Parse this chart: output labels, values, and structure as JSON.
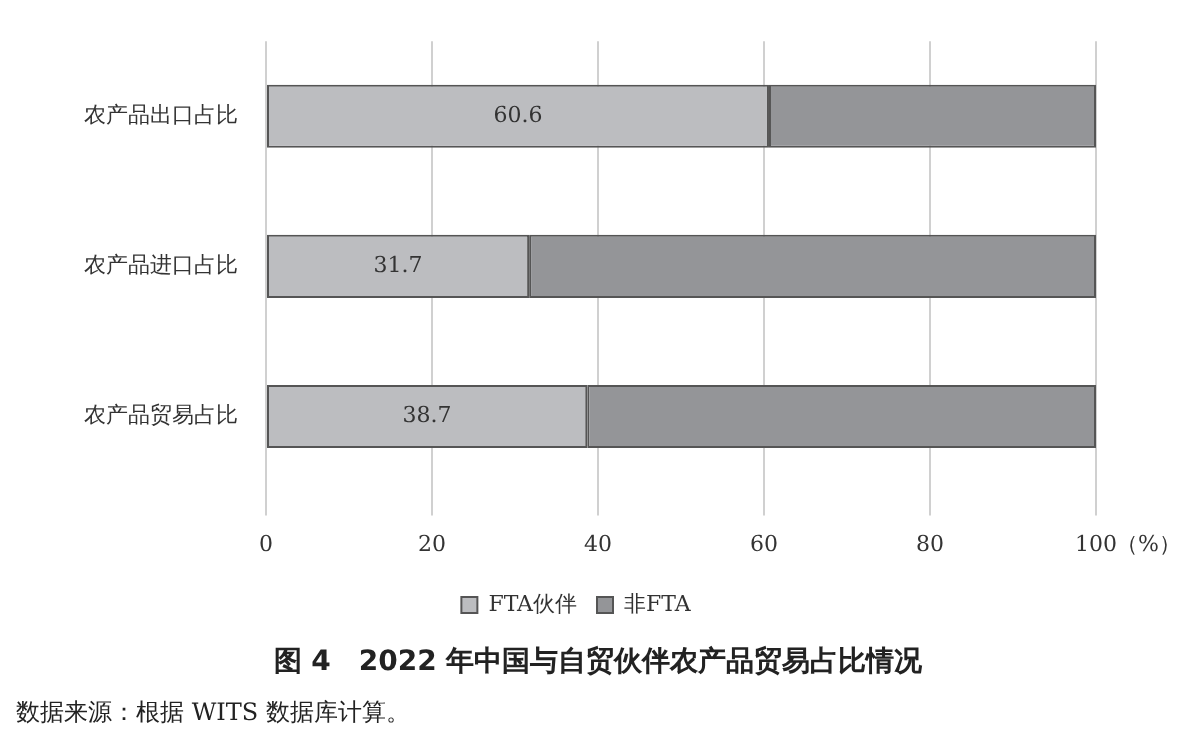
{
  "chart_data": {
    "type": "bar",
    "orientation": "horizontal",
    "stacked": true,
    "title": "图 4　2022 年中国与自贸伙伴农产品贸易占比情况",
    "xlabel": "（%）",
    "annotations": [
      "数据来源：根据 WITS 数据库计算。"
    ],
    "categories": [
      "农产品出口占比",
      "农产品进口占比",
      "农产品贸易占比"
    ],
    "series": [
      {
        "name": "FTA伙伴",
        "color": "#bcbdc0",
        "values": [
          60.6,
          31.7,
          38.7
        ],
        "value_labels": [
          "60.6",
          "31.7",
          "38.7"
        ]
      },
      {
        "name": "非FTA",
        "color": "#949598",
        "values": [
          39.4,
          68.3,
          61.3
        ]
      }
    ],
    "xlim": [
      0,
      100
    ],
    "xticks": [
      0,
      20,
      40,
      60,
      80,
      100
    ],
    "grid": "x",
    "legend": "bottom"
  }
}
